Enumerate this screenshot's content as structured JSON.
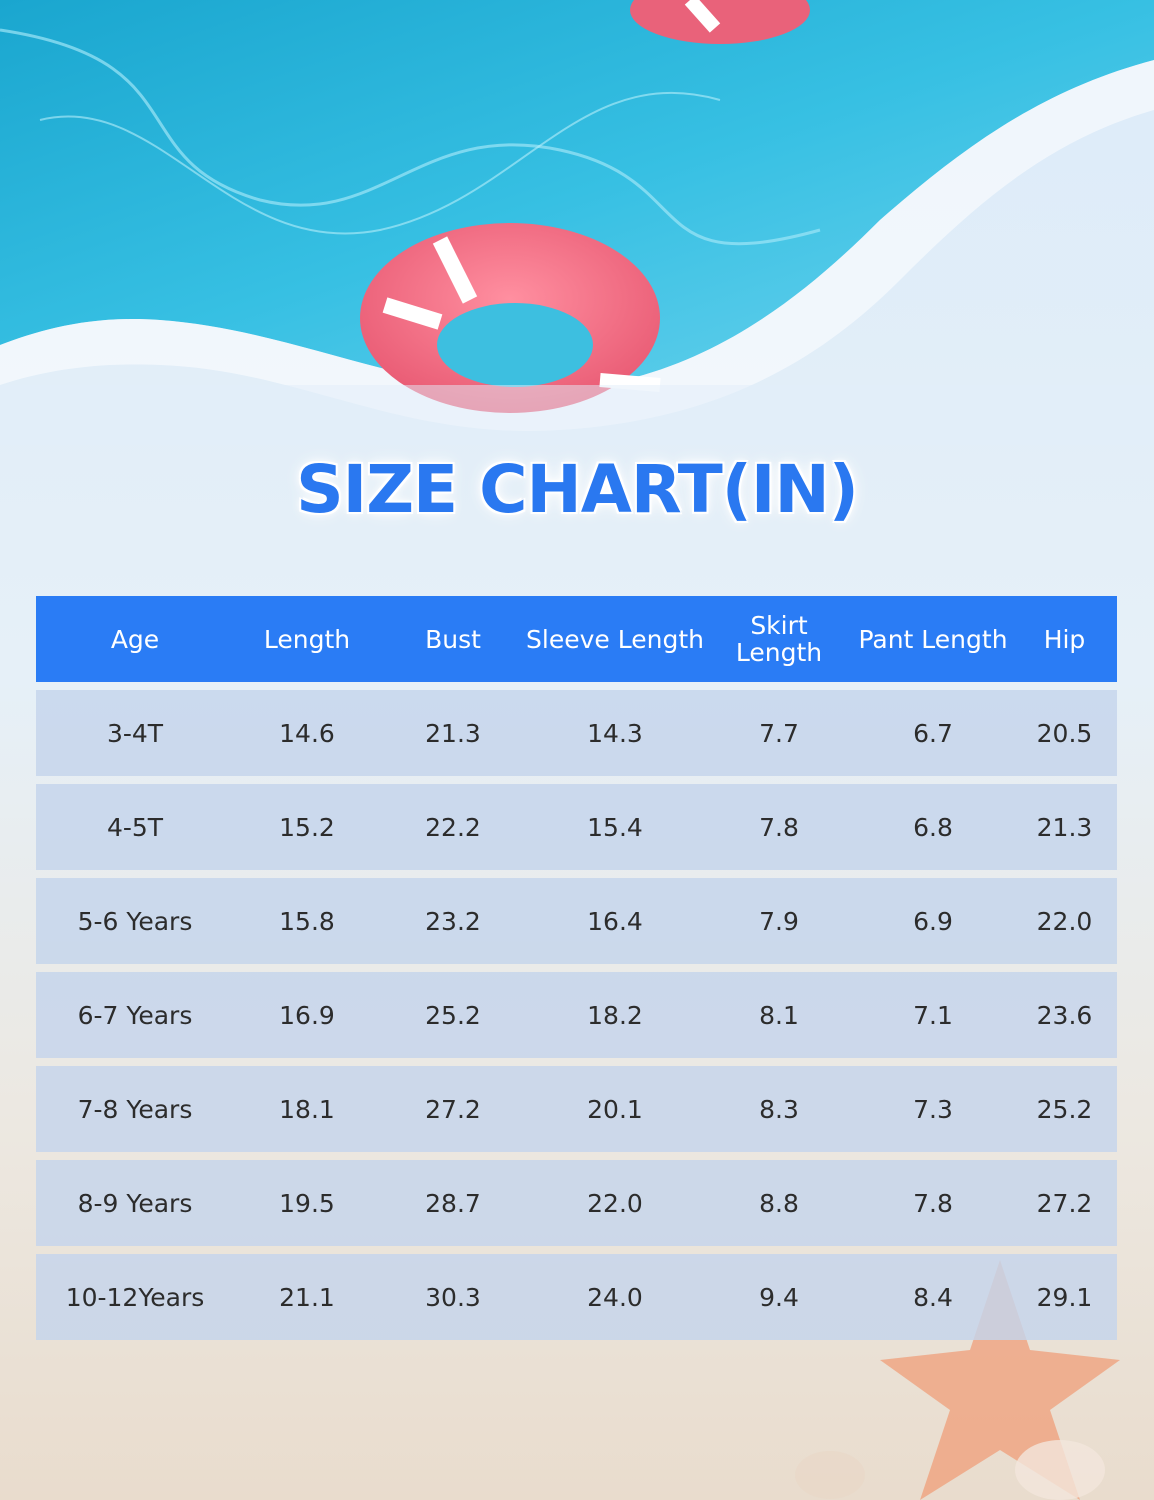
{
  "title": "SIZE CHART(IN)",
  "colors": {
    "header": "#2a7cf5",
    "title": "#2a78f0",
    "row": "#c4d4ec"
  },
  "table": {
    "headers": [
      "Age",
      "Length",
      "Bust",
      "Sleeve Length",
      "Skirt Length",
      "Pant Length",
      "Hip"
    ],
    "rows": [
      [
        "3-4T",
        "14.6",
        "21.3",
        "14.3",
        "7.7",
        "6.7",
        "20.5"
      ],
      [
        "4-5T",
        "15.2",
        "22.2",
        "15.4",
        "7.8",
        "6.8",
        "21.3"
      ],
      [
        "5-6 Years",
        "15.8",
        "23.2",
        "16.4",
        "7.9",
        "6.9",
        "22.0"
      ],
      [
        "6-7 Years",
        "16.9",
        "25.2",
        "18.2",
        "8.1",
        "7.1",
        "23.6"
      ],
      [
        "7-8 Years",
        "18.1",
        "27.2",
        "20.1",
        "8.3",
        "7.3",
        "25.2"
      ],
      [
        "8-9 Years",
        "19.5",
        "28.7",
        "22.0",
        "8.8",
        "7.8",
        "27.2"
      ],
      [
        "10-12Years",
        "21.1",
        "30.3",
        "24.0",
        "9.4",
        "8.4",
        "29.1"
      ]
    ]
  }
}
